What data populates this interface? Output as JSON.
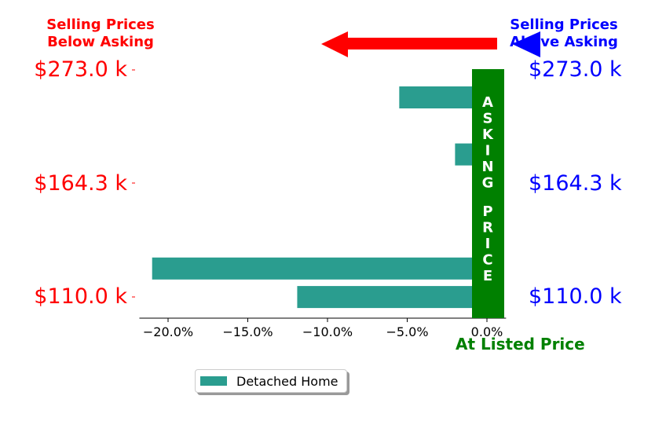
{
  "header": {
    "left": "Selling Prices\nBelow Asking",
    "right": "Selling Prices\nAbove Asking",
    "left_color": "#ff0000",
    "right_color": "#0000ff"
  },
  "asking_band": {
    "text": "ASKING PRICE",
    "color": "#008000"
  },
  "at_listed_label": "At Listed Price",
  "price_levels": [
    "$273.0 k",
    "$164.3 k",
    "$110.0 k"
  ],
  "legend": {
    "label": "Detached Home",
    "color": "#2a9d8f"
  },
  "chart_data": {
    "type": "bar",
    "orientation": "horizontal",
    "series": [
      {
        "name": "Detached Home",
        "values": [
          -5.5,
          1.0,
          -2.0,
          1.0,
          1.0,
          1.0,
          -21.0,
          -11.9
        ]
      }
    ],
    "xlim": [
      -22,
      1.5
    ],
    "xticks": [
      -20,
      -15,
      -10,
      -5,
      0
    ],
    "xtick_labels": [
      "−20.0%",
      "−15.0%",
      "−10.0%",
      "−5.0%",
      "0.0%"
    ],
    "ytick_labels": [
      "$273.0 k",
      "$164.3 k",
      "$110.0 k"
    ],
    "grid": false,
    "legend_position": "bottom-center"
  }
}
